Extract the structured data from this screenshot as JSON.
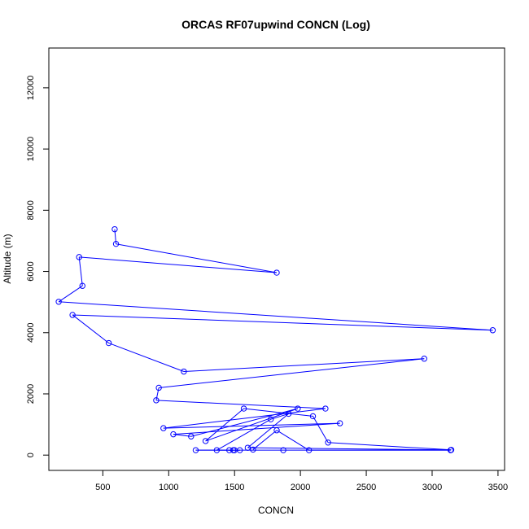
{
  "chart_data": {
    "type": "line",
    "title": "ORCAS RF07upwind CONCN (Log)",
    "xlabel": "CONCN",
    "ylabel": "Altitude (m)",
    "xlim": [
      90,
      3550
    ],
    "ylim": [
      -500,
      13300
    ],
    "x_ticks": [
      500,
      1000,
      1500,
      2000,
      2500,
      3000,
      3500
    ],
    "y_ticks": [
      0,
      2000,
      4000,
      6000,
      8000,
      10000,
      12000
    ],
    "grid": false,
    "series": [
      {
        "color": "#0000ff",
        "marker": "open-circle",
        "points": [
          [
            590,
            7380
          ],
          [
            600,
            6900
          ],
          [
            1820,
            5960
          ],
          [
            320,
            6470
          ],
          [
            345,
            5530
          ],
          [
            165,
            5010
          ],
          [
            3460,
            4080
          ],
          [
            270,
            4580
          ],
          [
            545,
            3660
          ],
          [
            1115,
            2730
          ],
          [
            2940,
            3150
          ],
          [
            925,
            2200
          ],
          [
            905,
            1790
          ],
          [
            2190,
            1520
          ],
          [
            960,
            880
          ],
          [
            2300,
            1040
          ],
          [
            1035,
            680
          ],
          [
            1170,
            610
          ],
          [
            1980,
            1520
          ],
          [
            1280,
            460
          ],
          [
            1570,
            1520
          ],
          [
            2095,
            1270
          ],
          [
            2210,
            410
          ],
          [
            3145,
            170
          ],
          [
            1600,
            240
          ],
          [
            1910,
            1350
          ],
          [
            1775,
            1170
          ],
          [
            1365,
            160
          ],
          [
            1500,
            160
          ],
          [
            1540,
            160
          ],
          [
            1460,
            160
          ],
          [
            1490,
            160
          ],
          [
            1205,
            160
          ],
          [
            1870,
            160
          ],
          [
            3140,
            160
          ],
          [
            2065,
            160
          ],
          [
            1820,
            810
          ],
          [
            1640,
            180
          ]
        ]
      }
    ]
  }
}
